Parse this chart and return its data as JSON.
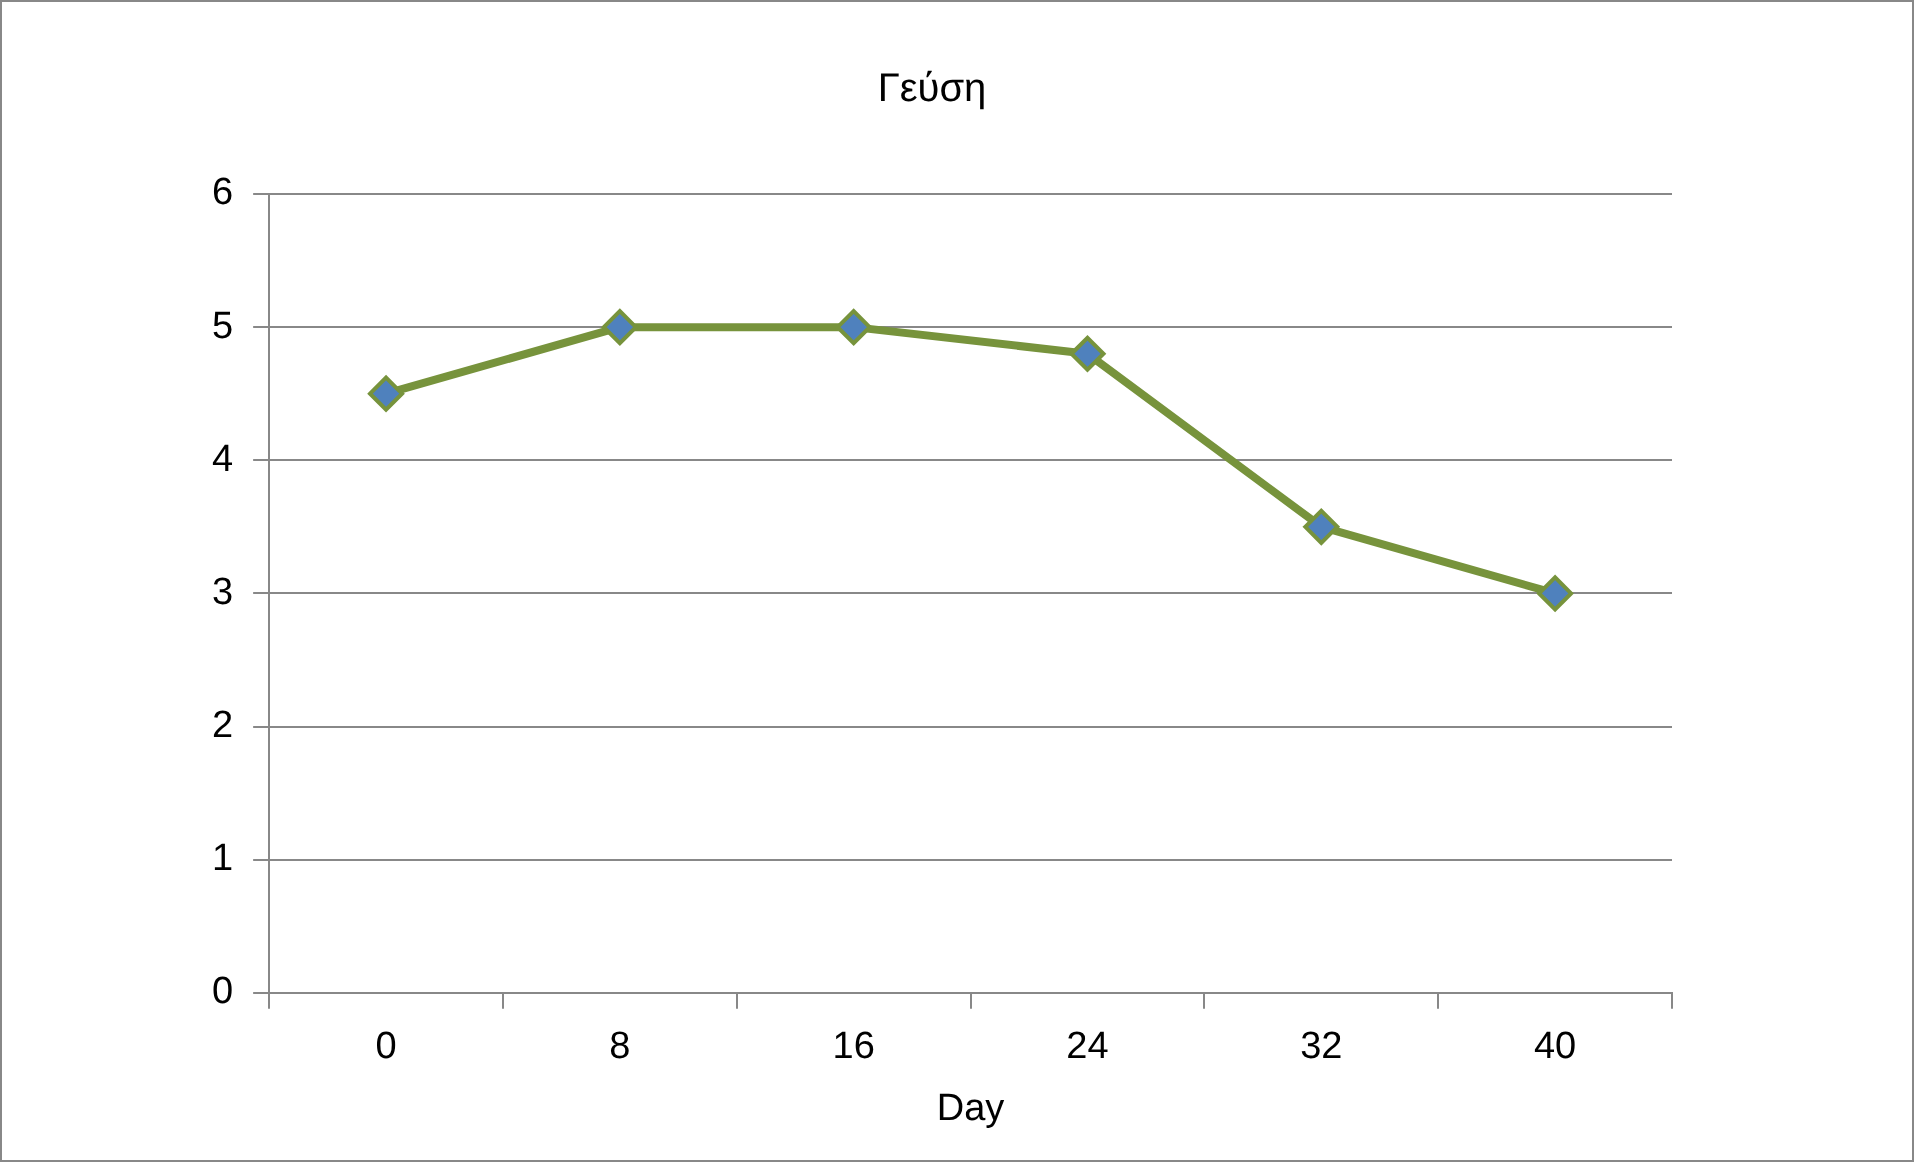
{
  "chart_data": {
    "type": "line",
    "title": "Γεύση",
    "xlabel": "Day",
    "categories": [
      "0",
      "8",
      "16",
      "24",
      "32",
      "40"
    ],
    "series": [
      {
        "color": "#77933c",
        "values": [
          4.5,
          5,
          5,
          4.8,
          3.5,
          3
        ]
      }
    ],
    "ylim": [
      0,
      6
    ],
    "yticks": [
      0,
      1,
      2,
      3,
      4,
      5,
      6
    ],
    "grid": "y",
    "legend": false,
    "marker": "diamond",
    "line_style": "solid"
  }
}
